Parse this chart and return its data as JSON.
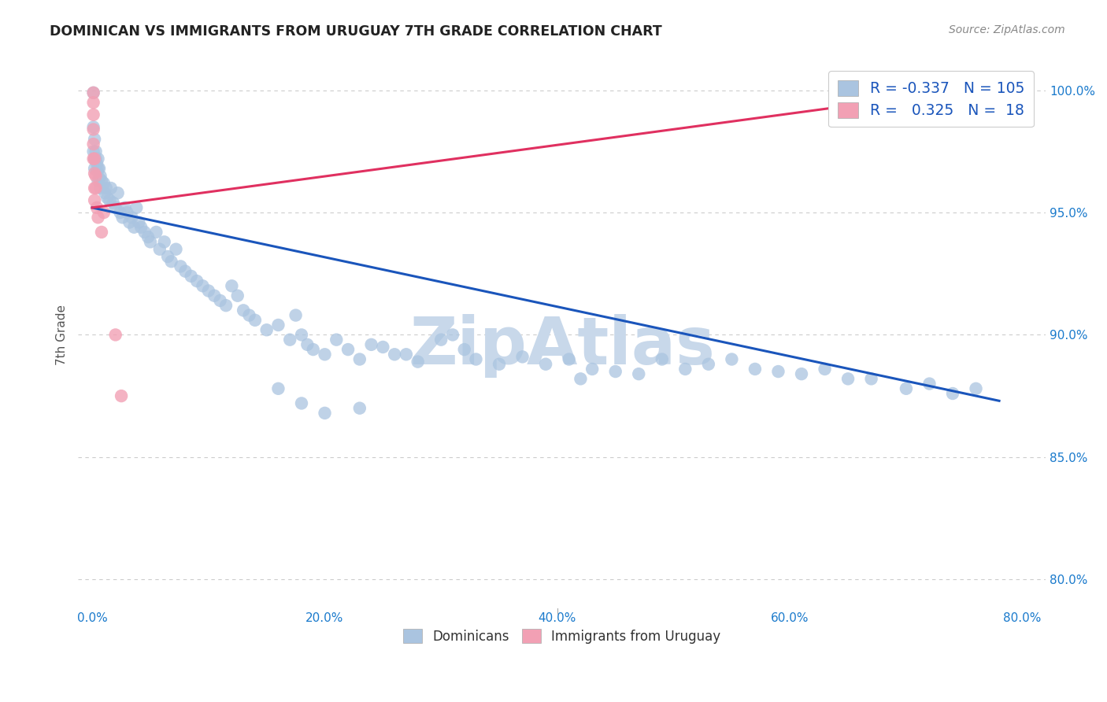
{
  "title": "DOMINICAN VS IMMIGRANTS FROM URUGUAY 7TH GRADE CORRELATION CHART",
  "source": "Source: ZipAtlas.com",
  "ylabel": "7th Grade",
  "watermark": "ZipAtlas",
  "legend_blue_r": "-0.337",
  "legend_blue_n": "105",
  "legend_pink_r": "0.325",
  "legend_pink_n": "18",
  "blue_color": "#aac4e0",
  "pink_color": "#f2a0b4",
  "blue_line_color": "#1a55bb",
  "pink_line_color": "#e03060",
  "blue_scatter_x": [
    0.001,
    0.001,
    0.001,
    0.002,
    0.002,
    0.002,
    0.003,
    0.003,
    0.004,
    0.004,
    0.005,
    0.005,
    0.005,
    0.006,
    0.006,
    0.007,
    0.007,
    0.008,
    0.01,
    0.011,
    0.012,
    0.013,
    0.015,
    0.016,
    0.018,
    0.02,
    0.022,
    0.024,
    0.026,
    0.028,
    0.03,
    0.032,
    0.034,
    0.036,
    0.038,
    0.04,
    0.042,
    0.045,
    0.048,
    0.05,
    0.055,
    0.058,
    0.062,
    0.065,
    0.068,
    0.072,
    0.076,
    0.08,
    0.085,
    0.09,
    0.095,
    0.1,
    0.105,
    0.11,
    0.115,
    0.12,
    0.125,
    0.13,
    0.135,
    0.14,
    0.15,
    0.16,
    0.17,
    0.175,
    0.18,
    0.185,
    0.19,
    0.2,
    0.21,
    0.22,
    0.23,
    0.24,
    0.25,
    0.26,
    0.27,
    0.28,
    0.3,
    0.31,
    0.32,
    0.33,
    0.35,
    0.37,
    0.39,
    0.41,
    0.43,
    0.45,
    0.47,
    0.49,
    0.51,
    0.53,
    0.55,
    0.57,
    0.59,
    0.61,
    0.63,
    0.65,
    0.67,
    0.7,
    0.72,
    0.74,
    0.76,
    0.42,
    0.16,
    0.18,
    0.2,
    0.23
  ],
  "blue_scatter_y": [
    0.999,
    0.985,
    0.975,
    0.98,
    0.972,
    0.968,
    0.975,
    0.972,
    0.97,
    0.967,
    0.972,
    0.968,
    0.963,
    0.968,
    0.964,
    0.965,
    0.96,
    0.963,
    0.962,
    0.958,
    0.96,
    0.956,
    0.955,
    0.96,
    0.954,
    0.952,
    0.958,
    0.95,
    0.948,
    0.952,
    0.95,
    0.946,
    0.948,
    0.944,
    0.952,
    0.946,
    0.944,
    0.942,
    0.94,
    0.938,
    0.942,
    0.935,
    0.938,
    0.932,
    0.93,
    0.935,
    0.928,
    0.926,
    0.924,
    0.922,
    0.92,
    0.918,
    0.916,
    0.914,
    0.912,
    0.92,
    0.916,
    0.91,
    0.908,
    0.906,
    0.902,
    0.904,
    0.898,
    0.908,
    0.9,
    0.896,
    0.894,
    0.892,
    0.898,
    0.894,
    0.89,
    0.896,
    0.895,
    0.892,
    0.892,
    0.889,
    0.898,
    0.9,
    0.894,
    0.89,
    0.888,
    0.891,
    0.888,
    0.89,
    0.886,
    0.885,
    0.884,
    0.89,
    0.886,
    0.888,
    0.89,
    0.886,
    0.885,
    0.884,
    0.886,
    0.882,
    0.882,
    0.878,
    0.88,
    0.876,
    0.878,
    0.882,
    0.878,
    0.872,
    0.868,
    0.87
  ],
  "pink_scatter_x": [
    0.001,
    0.001,
    0.001,
    0.001,
    0.001,
    0.001,
    0.002,
    0.002,
    0.002,
    0.002,
    0.003,
    0.003,
    0.004,
    0.005,
    0.008,
    0.01,
    0.02,
    0.025
  ],
  "pink_scatter_y": [
    0.999,
    0.995,
    0.99,
    0.984,
    0.978,
    0.972,
    0.972,
    0.966,
    0.96,
    0.955,
    0.965,
    0.96,
    0.952,
    0.948,
    0.942,
    0.95,
    0.9,
    0.875
  ],
  "blue_line_x": [
    0.0,
    0.78
  ],
  "blue_line_y": [
    0.952,
    0.873
  ],
  "pink_line_x": [
    0.0,
    0.78
  ],
  "pink_line_y": [
    0.952,
    1.002
  ],
  "xlim": [
    -0.012,
    0.82
  ],
  "ylim": [
    0.788,
    1.012
  ],
  "xtick_vals": [
    0.0,
    0.2,
    0.4,
    0.6,
    0.8
  ],
  "xtick_labels": [
    "0.0%",
    "20.0%",
    "40.0%",
    "60.0%",
    "80.0%"
  ],
  "ytick_vals": [
    0.8,
    0.85,
    0.9,
    0.95,
    1.0
  ],
  "ytick_labels": [
    "80.0%",
    "85.0%",
    "90.0%",
    "95.0%",
    "100.0%"
  ],
  "background_color": "#ffffff",
  "grid_color": "#cccccc",
  "title_color": "#222222",
  "axis_label_color": "#1a7acc",
  "watermark_color": "#c8d8ea",
  "watermark_fontsize": 60
}
